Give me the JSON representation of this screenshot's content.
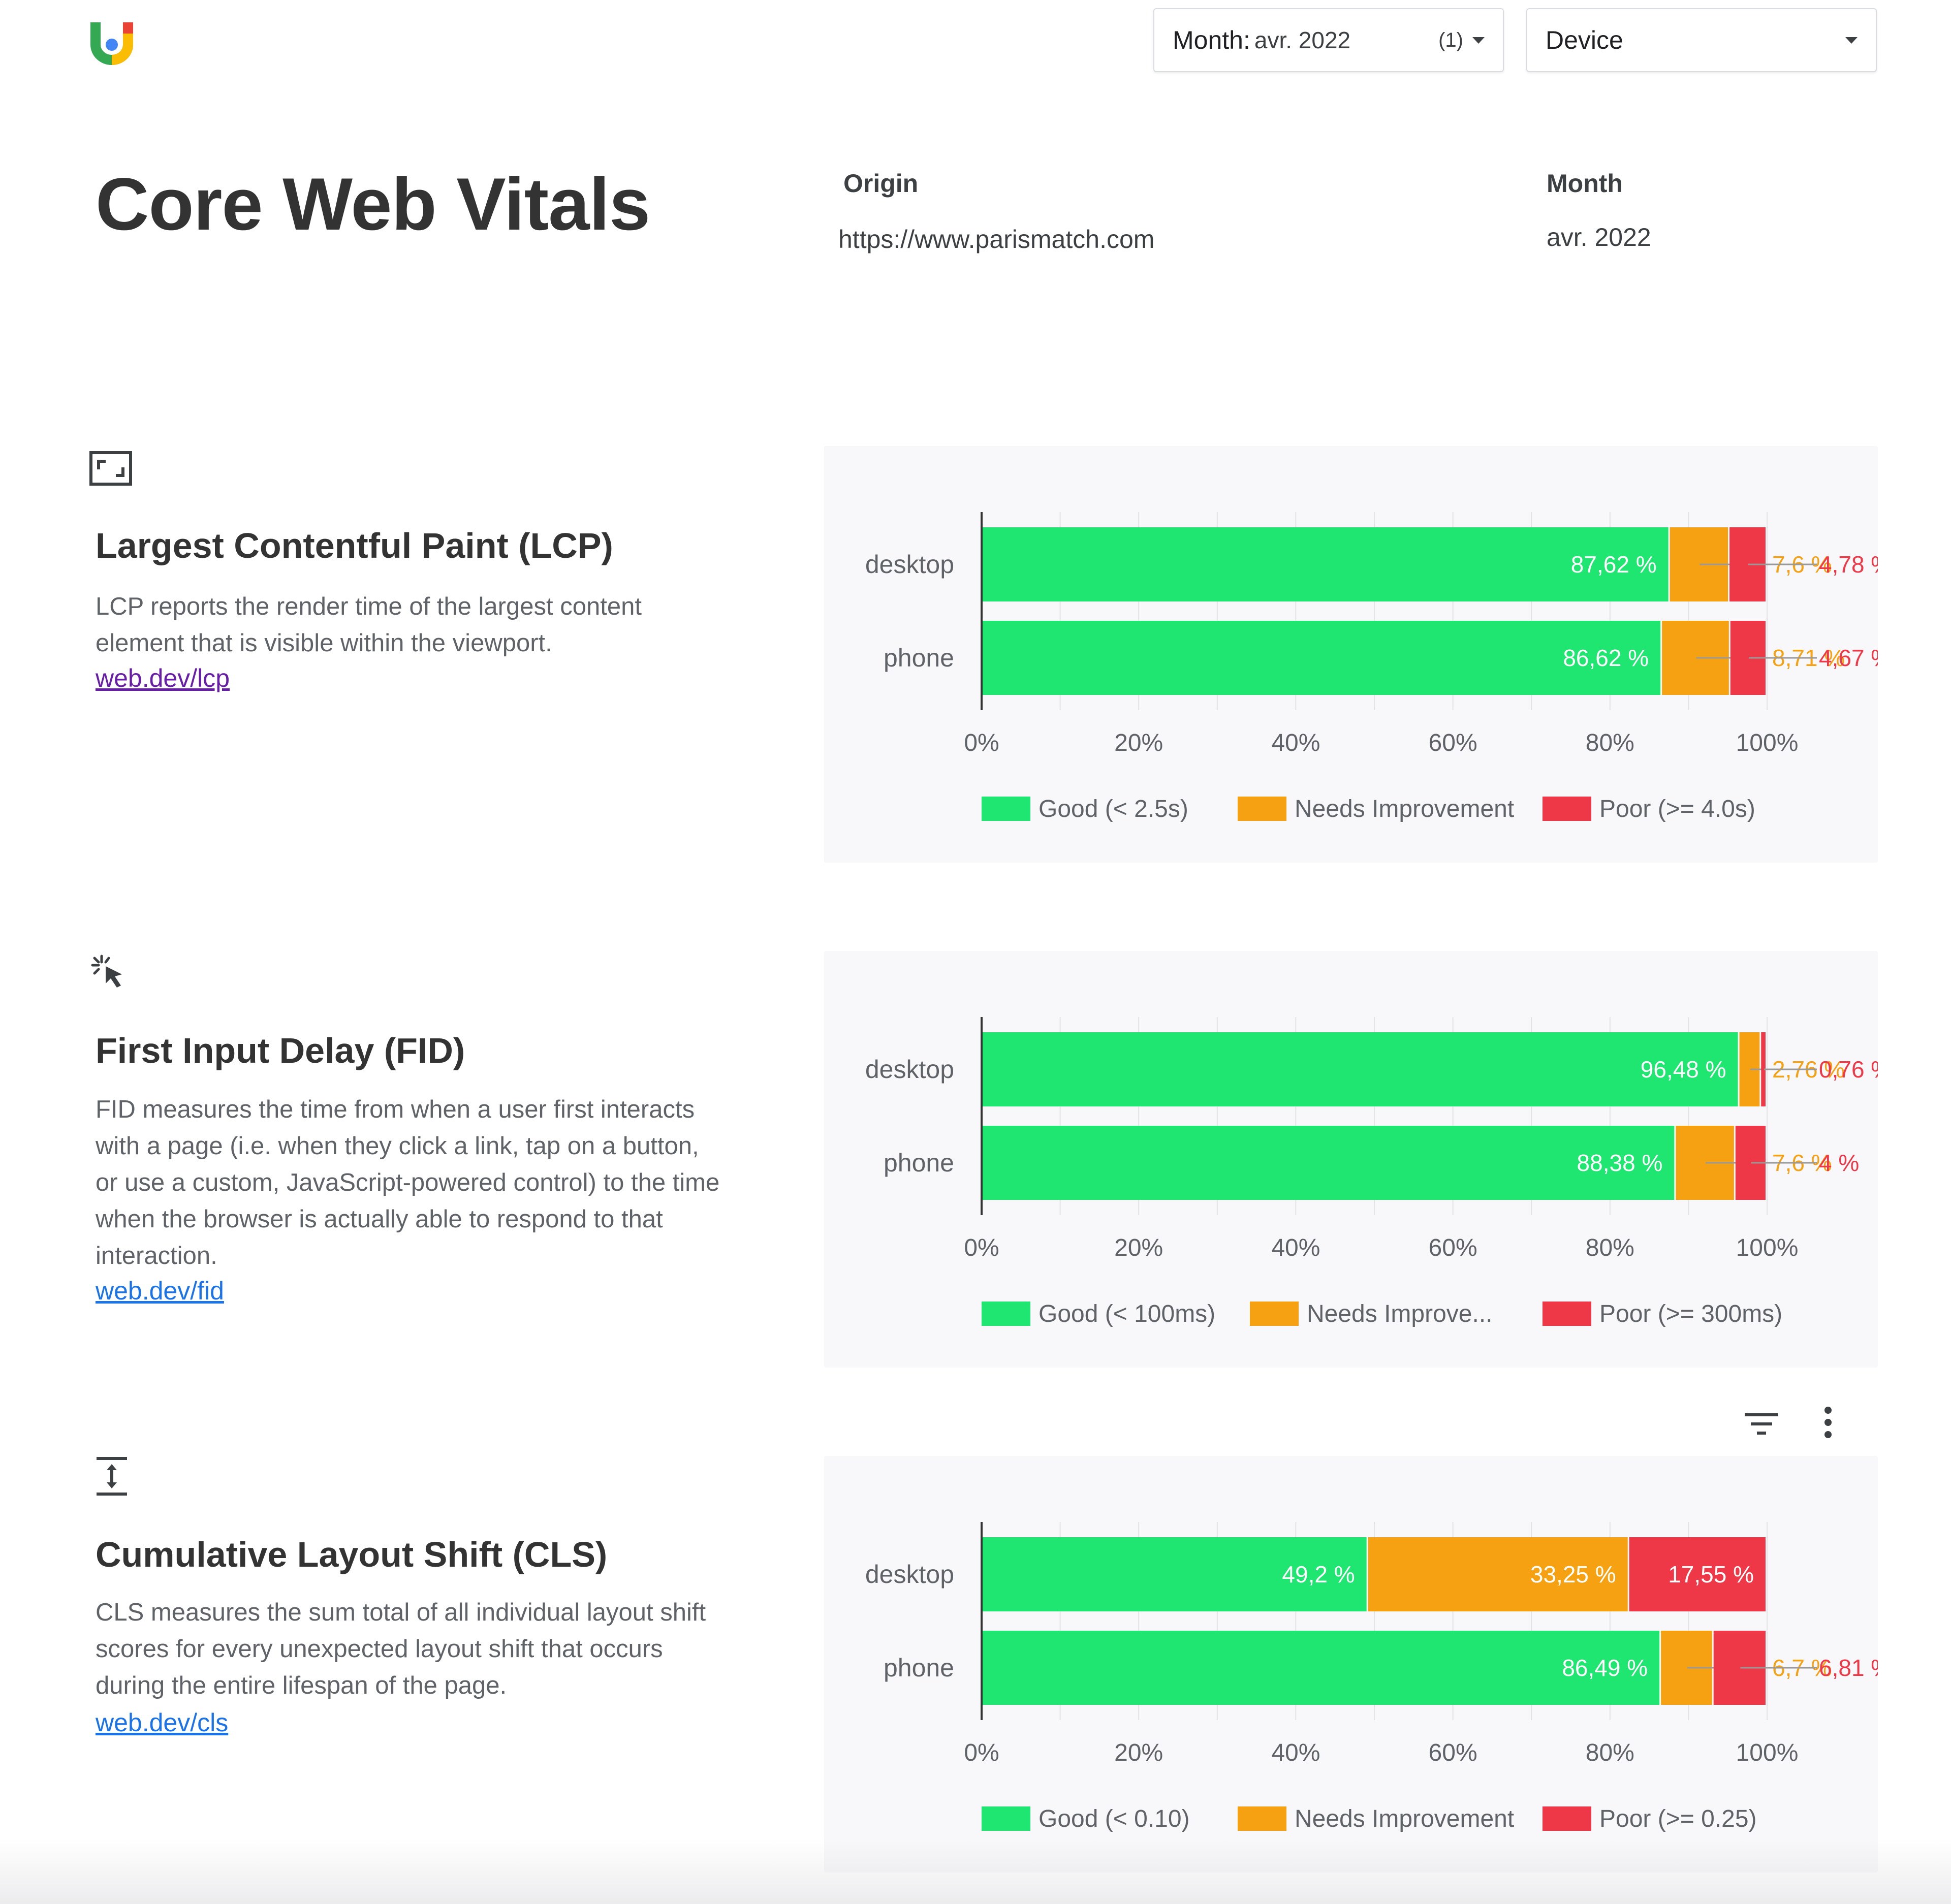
{
  "header": {
    "month_filter": {
      "label": "Month:",
      "value": "avr. 2022",
      "count": "(1)"
    },
    "device_filter": {
      "label": "Device"
    }
  },
  "page_title": "Core Web Vitals",
  "meta": {
    "origin_heading": "Origin",
    "origin_value": "https://www.parismatch.com",
    "month_heading": "Month",
    "month_value": "avr. 2022"
  },
  "colors": {
    "good": "#1fe671",
    "needs_improvement": "#f6a112",
    "poor": "#ef3847",
    "link": "#1a73e8",
    "link_visited": "#681da8"
  },
  "sections": [
    {
      "id": "lcp",
      "icon": "crop-frame-icon",
      "title": "Largest Contentful Paint (LCP)",
      "description": "LCP reports the render time of the largest content element that is visible within the viewport.",
      "link": "web.dev/lcp"
    },
    {
      "id": "fid",
      "icon": "click-cursor-icon",
      "title": "First Input Delay (FID)",
      "description": "FID measures the time from when a user first interacts with a page (i.e. when they click a link, tap on a button, or use a custom, JavaScript-powered control) to the time when the browser is actually able to respond to that interaction.",
      "link": "web.dev/fid"
    },
    {
      "id": "cls",
      "icon": "vertical-shift-icon",
      "title": "Cumulative Layout Shift (CLS)",
      "description": "CLS measures the sum total of all individual layout shift scores for every unexpected layout shift that occurs during the entire lifespan of the page.",
      "link": "web.dev/cls"
    }
  ],
  "chart_toolbar": {
    "filter_icon": "filter-lines-icon",
    "more_icon": "more-vert-icon"
  },
  "chart_data": [
    {
      "type": "bar",
      "orientation": "horizontal",
      "stacked": true,
      "categories": [
        "desktop",
        "phone"
      ],
      "series": [
        {
          "name": "Good (< 2.5s)",
          "color": "#1fe671",
          "values": [
            87.62,
            86.62
          ],
          "labels": [
            "87,62 %",
            "86,62 %"
          ]
        },
        {
          "name": "Needs Improvement",
          "color": "#f6a112",
          "values": [
            7.6,
            8.71
          ],
          "labels": [
            "7,6 %",
            "8,71 %"
          ]
        },
        {
          "name": "Poor (>= 4.0s)",
          "color": "#ef3847",
          "values": [
            4.78,
            4.67
          ],
          "labels": [
            "4,78 %",
            "4,67 %"
          ]
        }
      ],
      "xlim": [
        0,
        100
      ],
      "xticks": [
        "0%",
        "20%",
        "40%",
        "60%",
        "80%",
        "100%"
      ],
      "legend_position": "bottom"
    },
    {
      "type": "bar",
      "orientation": "horizontal",
      "stacked": true,
      "categories": [
        "desktop",
        "phone"
      ],
      "series": [
        {
          "name": "Good (< 100ms)",
          "color": "#1fe671",
          "values": [
            96.48,
            88.38
          ],
          "labels": [
            "96,48 %",
            "88,38 %"
          ]
        },
        {
          "name": "Needs Improve...",
          "color": "#f6a112",
          "values": [
            2.76,
            7.6
          ],
          "labels": [
            "2,76 %",
            "7,6 %"
          ]
        },
        {
          "name": "Poor (>= 300ms)",
          "color": "#ef3847",
          "values": [
            0.76,
            4.02
          ],
          "labels": [
            "0,76 %",
            "4 %"
          ]
        }
      ],
      "xlim": [
        0,
        100
      ],
      "xticks": [
        "0%",
        "20%",
        "40%",
        "60%",
        "80%",
        "100%"
      ],
      "legend_position": "bottom"
    },
    {
      "type": "bar",
      "orientation": "horizontal",
      "stacked": true,
      "categories": [
        "desktop",
        "phone"
      ],
      "series": [
        {
          "name": "Good (< 0.10)",
          "color": "#1fe671",
          "values": [
            49.2,
            86.49
          ],
          "labels": [
            "49,2 %",
            "86,49 %"
          ]
        },
        {
          "name": "Needs Improvement",
          "color": "#f6a112",
          "values": [
            33.25,
            6.7
          ],
          "labels": [
            "33,25 %",
            "6,7 %"
          ]
        },
        {
          "name": "Poor (>= 0.25)",
          "color": "#ef3847",
          "values": [
            17.55,
            6.81
          ],
          "labels": [
            "17,55 %",
            "6,81 %"
          ]
        }
      ],
      "xlim": [
        0,
        100
      ],
      "xticks": [
        "0%",
        "20%",
        "40%",
        "60%",
        "80%",
        "100%"
      ],
      "legend_position": "bottom"
    }
  ]
}
